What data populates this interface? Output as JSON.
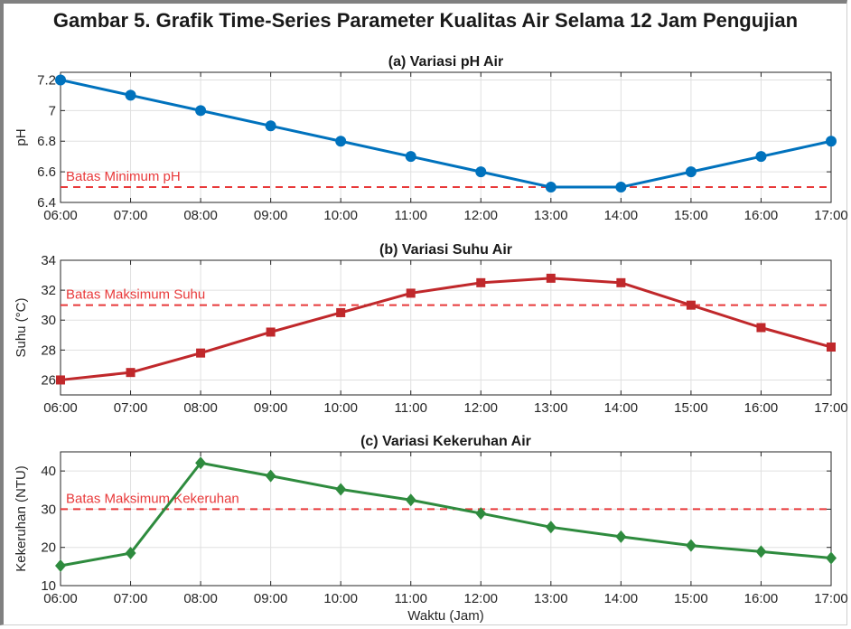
{
  "figure_title": "Gambar 5. Grafik Time-Series Parameter Kualitas Air Selama 12 Jam Pengujian",
  "colors": {
    "ph_series": "#0072BD",
    "temp_series": "#C0282B",
    "turbidity_series": "#2E8B3E",
    "threshold": "#E8393A",
    "grid": "#e0e0e0",
    "axis": "#262626"
  },
  "chart_data": [
    {
      "type": "line",
      "title": "(a) Variasi pH Air",
      "xlabel": "",
      "ylabel": "pH",
      "categories": [
        "06:00",
        "07:00",
        "08:00",
        "09:00",
        "10:00",
        "11:00",
        "12:00",
        "13:00",
        "14:00",
        "15:00",
        "16:00",
        "17:00"
      ],
      "series": [
        {
          "values": [
            7.2,
            7.1,
            7.0,
            6.9,
            6.8,
            6.7,
            6.6,
            6.5,
            6.5,
            6.6,
            6.7,
            6.8
          ],
          "marker": "circle",
          "color": "#0072BD"
        }
      ],
      "ylim": [
        6.4,
        7.25
      ],
      "yticks": [
        6.4,
        6.6,
        6.8,
        7,
        7.2
      ],
      "ytick_labels": [
        "6.4",
        "6.6",
        "6.8",
        "7",
        "7.2"
      ],
      "threshold": {
        "value": 6.5,
        "label": "Batas Minimum pH"
      },
      "grid": true
    },
    {
      "type": "line",
      "title": "(b) Variasi Suhu Air",
      "xlabel": "",
      "ylabel": "Suhu (°C)",
      "categories": [
        "06:00",
        "07:00",
        "08:00",
        "09:00",
        "10:00",
        "11:00",
        "12:00",
        "13:00",
        "14:00",
        "15:00",
        "16:00",
        "17:00"
      ],
      "series": [
        {
          "values": [
            26.0,
            26.5,
            27.8,
            29.2,
            30.5,
            31.8,
            32.5,
            32.8,
            32.5,
            31.0,
            29.5,
            28.2
          ],
          "marker": "square",
          "color": "#C0282B"
        }
      ],
      "ylim": [
        25,
        34
      ],
      "yticks": [
        26,
        28,
        30,
        32,
        34
      ],
      "ytick_labels": [
        "26",
        "28",
        "30",
        "32",
        "34"
      ],
      "threshold": {
        "value": 31,
        "label": "Batas Maksimum Suhu"
      },
      "grid": true
    },
    {
      "type": "line",
      "title": "(c) Variasi Kekeruhan Air",
      "xlabel": "Waktu (Jam)",
      "ylabel": "Kekeruhan (NTU)",
      "categories": [
        "06:00",
        "07:00",
        "08:00",
        "09:00",
        "10:00",
        "11:00",
        "12:00",
        "13:00",
        "14:00",
        "15:00",
        "16:00",
        "17:00"
      ],
      "series": [
        {
          "values": [
            15.2,
            18.5,
            42.1,
            38.7,
            35.2,
            32.4,
            28.9,
            25.3,
            22.8,
            20.5,
            18.9,
            17.2
          ],
          "marker": "diamond",
          "color": "#2E8B3E"
        }
      ],
      "ylim": [
        10,
        45
      ],
      "yticks": [
        10,
        20,
        30,
        40
      ],
      "ytick_labels": [
        "10",
        "20",
        "30",
        "40"
      ],
      "threshold": {
        "value": 30,
        "label": "Batas Maksimum Kekeruhan"
      },
      "grid": true
    }
  ]
}
